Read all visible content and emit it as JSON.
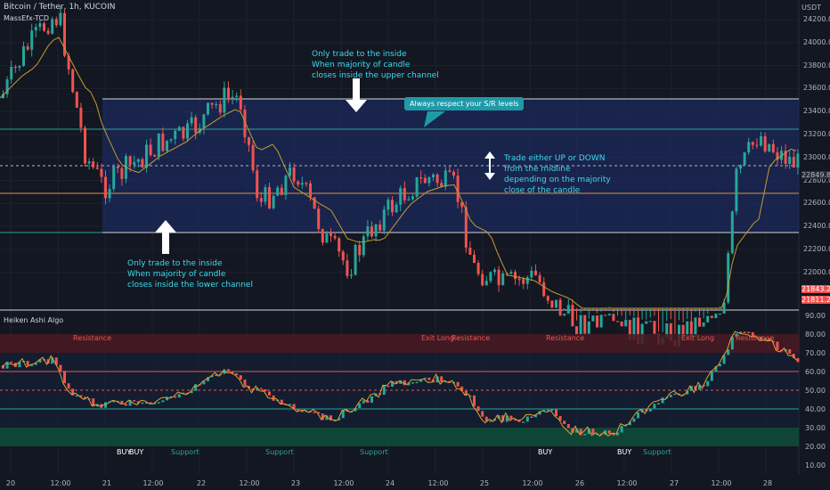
{
  "header": {
    "symbol_title": "Bitcoin / Tether, 1h, KUCOIN",
    "indicator_1": "MassEfx-TCD",
    "currency": "USDT"
  },
  "price_axis": [
    "24200.0",
    "24000.0",
    "23800.0",
    "23600.0",
    "23400.0",
    "23200.0",
    "23000.0",
    "22800.0",
    "22600.0",
    "22400.0",
    "22200.0",
    "22000.0"
  ],
  "price_tags": {
    "midline": "22849.8",
    "last_price": "21843.2",
    "second_price": "21811.2"
  },
  "annotations": {
    "upper": [
      "Only trade to the inside",
      "When majority of candle",
      "closes inside the upper channel"
    ],
    "lower": [
      "Only trade to the inside",
      "When majority of candle",
      "closes inside the lower channel"
    ],
    "mid": [
      "Trade either UP or DOWN",
      "from the midline",
      "depending on the majority",
      "close of the candle"
    ],
    "callout": "Always respect your S/R levels"
  },
  "indicator_panel": {
    "title": "Heiken Ashi Algo",
    "axis": [
      "90.00",
      "80.00",
      "70.00",
      "60.00",
      "50.00",
      "40.00",
      "30.00",
      "20.00",
      "10.00"
    ],
    "resistance_labels": [
      "Resistance",
      "Exit Long",
      "Resistance",
      "Resistance",
      "Exit Long",
      "Resistance"
    ],
    "support_labels": [
      "Support",
      "Support",
      "Support",
      "Support"
    ],
    "buy_labels": [
      "BUY",
      "BUY",
      "BUY",
      "BUY"
    ]
  },
  "date_axis": [
    "20",
    "12:00",
    "21",
    "12:00",
    "22",
    "12:00",
    "23",
    "12:00",
    "24",
    "12:00",
    "25",
    "12:00",
    "26",
    "12:00",
    "27",
    "12:00",
    "28"
  ],
  "colors": {
    "background": "#131722",
    "bull": "#26a69a",
    "bear": "#ef5350",
    "channel": "#1c2a5c",
    "annotation": "#3dd9eb",
    "ma": "#c49b2f"
  }
}
